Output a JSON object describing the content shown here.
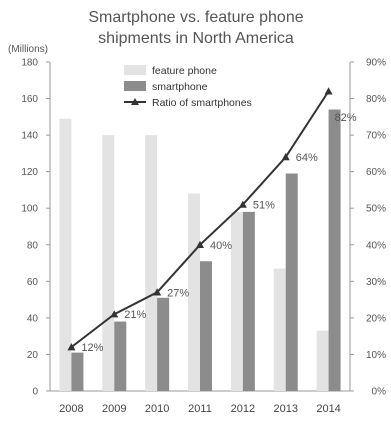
{
  "chart_data": {
    "type": "bar",
    "title_lines": [
      "Smartphone vs. feature phone",
      "shipments in North America"
    ],
    "unit_label": "(Millions)",
    "categories": [
      "2008",
      "2009",
      "2010",
      "2011",
      "2012",
      "2013",
      "2014"
    ],
    "series": [
      {
        "name": "feature phone",
        "type": "bar",
        "color": "#e3e3e3",
        "values": [
          149,
          140,
          140,
          108,
          98,
          67,
          33
        ]
      },
      {
        "name": "smartphone",
        "type": "bar",
        "color": "#8c8c8c",
        "values": [
          21,
          38,
          51,
          71,
          98,
          119,
          154
        ]
      },
      {
        "name": "Ratio of smartphones",
        "type": "line",
        "axis": "right",
        "color": "#333333",
        "values": [
          12,
          21,
          27,
          40,
          51,
          64,
          82
        ],
        "labels": [
          "12%",
          "21%",
          "27%",
          "40%",
          "51%",
          "64%",
          "82%"
        ]
      }
    ],
    "y_left": {
      "min": 0,
      "max": 180,
      "ticks": [
        "0",
        "20",
        "40",
        "60",
        "80",
        "100",
        "120",
        "140",
        "160",
        "180"
      ]
    },
    "y_right": {
      "min": 0,
      "max": 90,
      "ticks": [
        "0%",
        "10%",
        "20%",
        "30%",
        "40%",
        "50%",
        "60%",
        "70%",
        "80%",
        "90%"
      ]
    },
    "grid": false,
    "legend_position": "top-center"
  }
}
